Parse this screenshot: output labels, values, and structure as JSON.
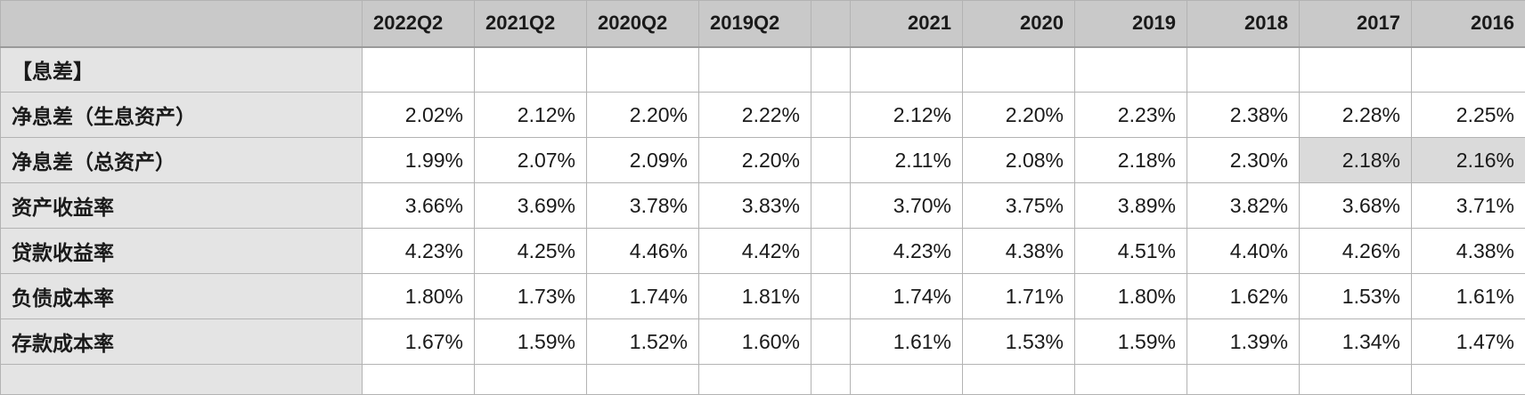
{
  "columns": {
    "quarters": [
      "2022Q2",
      "2021Q2",
      "2020Q2",
      "2019Q2"
    ],
    "years": [
      "2021",
      "2020",
      "2019",
      "2018",
      "2017",
      "2016"
    ]
  },
  "section_header": "【息差】",
  "rows": [
    {
      "label": "净息差（生息资产）",
      "quarters": [
        "2.02%",
        "2.12%",
        "2.20%",
        "2.22%"
      ],
      "years": [
        "2.12%",
        "2.20%",
        "2.23%",
        "2.38%",
        "2.28%",
        "2.25%"
      ]
    },
    {
      "label": "净息差（总资产）",
      "quarters": [
        "1.99%",
        "2.07%",
        "2.09%",
        "2.20%"
      ],
      "years": [
        "2.11%",
        "2.08%",
        "2.18%",
        "2.30%",
        "2.18%",
        "2.16%"
      ]
    },
    {
      "label": "资产收益率",
      "quarters": [
        "3.66%",
        "3.69%",
        "3.78%",
        "3.83%"
      ],
      "years": [
        "3.70%",
        "3.75%",
        "3.89%",
        "3.82%",
        "3.68%",
        "3.71%"
      ]
    },
    {
      "label": "贷款收益率",
      "quarters": [
        "4.23%",
        "4.25%",
        "4.46%",
        "4.42%"
      ],
      "years": [
        "4.23%",
        "4.38%",
        "4.51%",
        "4.40%",
        "4.26%",
        "4.38%"
      ]
    },
    {
      "label": "负债成本率",
      "quarters": [
        "1.80%",
        "1.73%",
        "1.74%",
        "1.81%"
      ],
      "years": [
        "1.74%",
        "1.71%",
        "1.80%",
        "1.62%",
        "1.53%",
        "1.61%"
      ]
    },
    {
      "label": "存款成本率",
      "quarters": [
        "1.67%",
        "1.59%",
        "1.52%",
        "1.60%"
      ],
      "years": [
        "1.61%",
        "1.53%",
        "1.59%",
        "1.39%",
        "1.34%",
        "1.47%"
      ]
    }
  ],
  "colors": {
    "header_bg": "#c9c9c9",
    "label_bg": "#e4e4e4",
    "highlight_bg": "#dadada",
    "grid": "#b3b3b3"
  }
}
